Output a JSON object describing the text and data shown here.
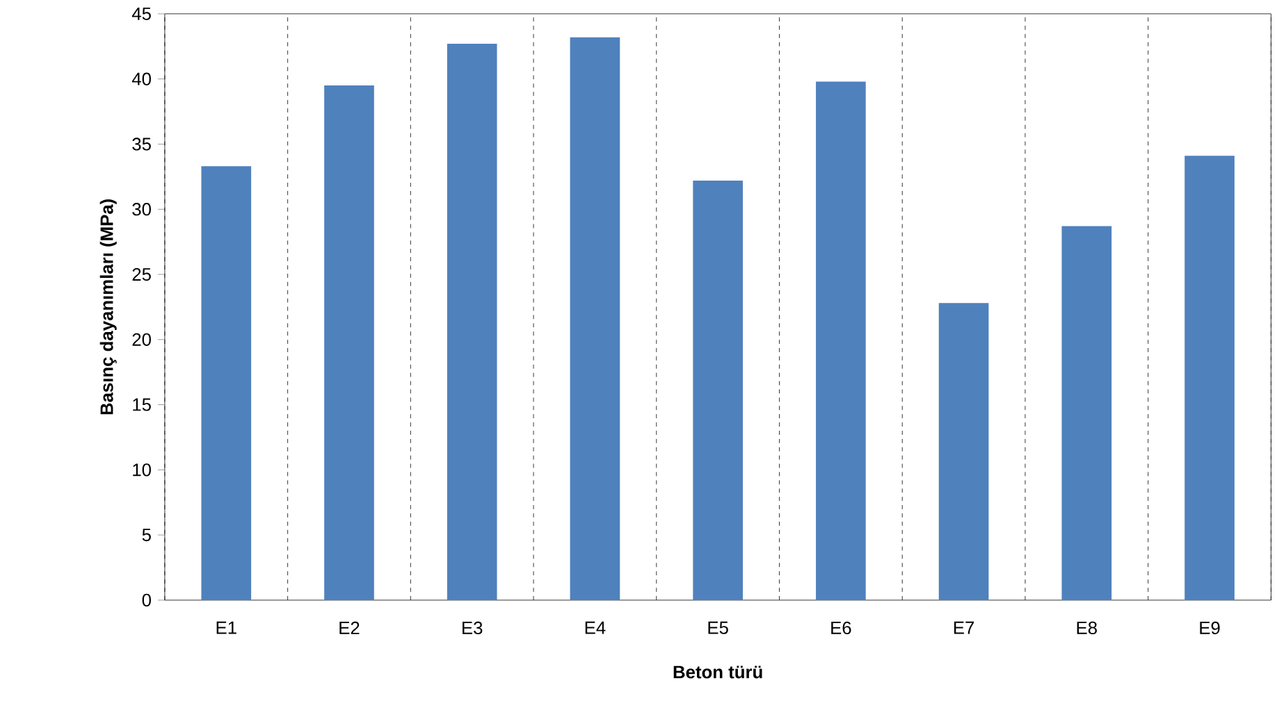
{
  "chart_data": {
    "type": "bar",
    "xlabel": "Beton türü",
    "ylabel": "Basınç dayanımları (MPa)",
    "categories": [
      "E1",
      "E2",
      "E3",
      "E4",
      "E5",
      "E6",
      "E7",
      "E8",
      "E9"
    ],
    "values": [
      33.3,
      39.5,
      42.7,
      43.2,
      32.2,
      39.8,
      22.8,
      28.7,
      34.1
    ],
    "color": "#4f81bd",
    "ylim": [
      0,
      45
    ],
    "yticks": [
      0,
      5,
      10,
      15,
      20,
      25,
      30,
      35,
      40,
      45
    ],
    "grid": "x"
  }
}
